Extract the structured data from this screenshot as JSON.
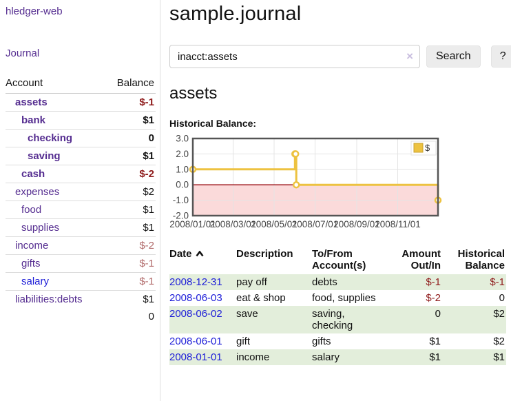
{
  "app": {
    "brand": "hledger-web",
    "nav_journal": "Journal"
  },
  "colors": {
    "link_purple": "#552d90",
    "link_blue": "#1d1dd8",
    "negative_bold": "#8f1c1c",
    "negative_muted": "#b16a6a",
    "row_green": "#e3eedb",
    "series_gold": "#edc240",
    "negative_region_pink": "#fbdada",
    "zero_line_red": "#9d1418",
    "button_gray": "#ececec"
  },
  "sidebar": {
    "header": {
      "account": "Account",
      "balance": "Balance"
    },
    "accounts": [
      {
        "name": "assets",
        "indent": 1,
        "bold": true,
        "unvisited": false,
        "balance": "$-1",
        "negative": true
      },
      {
        "name": "bank",
        "indent": 2,
        "bold": true,
        "unvisited": false,
        "balance": "$1",
        "negative": false
      },
      {
        "name": "checking",
        "indent": 3,
        "bold": true,
        "unvisited": false,
        "balance": "0",
        "negative": false
      },
      {
        "name": "saving",
        "indent": 3,
        "bold": true,
        "unvisited": false,
        "balance": "$1",
        "negative": false
      },
      {
        "name": "cash",
        "indent": 2,
        "bold": true,
        "unvisited": false,
        "balance": "$-2",
        "negative": true
      },
      {
        "name": "expenses",
        "indent": 1,
        "bold": false,
        "unvisited": false,
        "balance": "$2",
        "negative": false
      },
      {
        "name": "food",
        "indent": 2,
        "bold": false,
        "unvisited": false,
        "balance": "$1",
        "negative": false
      },
      {
        "name": "supplies",
        "indent": 2,
        "bold": false,
        "unvisited": false,
        "balance": "$1",
        "negative": false
      },
      {
        "name": "income",
        "indent": 1,
        "bold": false,
        "unvisited": false,
        "balance": "$-2",
        "negative": true
      },
      {
        "name": "gifts",
        "indent": 2,
        "bold": false,
        "unvisited": false,
        "balance": "$-1",
        "negative": true
      },
      {
        "name": "salary",
        "indent": 2,
        "bold": false,
        "unvisited": true,
        "balance": "$-1",
        "negative": true
      },
      {
        "name": "liabilities:debts",
        "indent": 1,
        "bold": false,
        "unvisited": false,
        "balance": "$1",
        "negative": false
      }
    ],
    "total": "0"
  },
  "main": {
    "title": "sample.journal",
    "search": {
      "value": "inacct:assets",
      "clear_label": "×",
      "button_label": "Search",
      "help_label": "?"
    },
    "account_heading": "assets"
  },
  "chart_data": {
    "type": "line",
    "title": "Historical Balance:",
    "steps": true,
    "ylim": [
      -2,
      3
    ],
    "yticks": [
      3.0,
      2.0,
      1.0,
      0.0,
      -1.0,
      -2.0
    ],
    "xticks": [
      "2008/01/01",
      "2008/03/01",
      "2008/05/01",
      "2008/07/01",
      "2008/09/01",
      "2008/11/01"
    ],
    "x_range": [
      "2008-01-01",
      "2008-12-31"
    ],
    "grid": true,
    "legend_position": "top-right",
    "series": [
      {
        "name": "$",
        "color": "#edc240",
        "points": [
          [
            "2008-01-01",
            1
          ],
          [
            "2008-06-01",
            2
          ],
          [
            "2008-06-02",
            2
          ],
          [
            "2008-06-03",
            0
          ],
          [
            "2008-12-31",
            -1
          ]
        ]
      }
    ],
    "negative_fill": "#fbdada",
    "zero_line_color": "#9d1418"
  },
  "register": {
    "headers": {
      "date": "Date",
      "description": "Description",
      "accounts": "To/From Account(s)",
      "amount": "Amount Out/In",
      "balance": "Historical Balance"
    },
    "rows": [
      {
        "date": "2008-12-31",
        "description": "pay off",
        "accounts": [
          "debts"
        ],
        "amount": "$-1",
        "amount_negative": true,
        "balance": "$-1",
        "balance_negative": true
      },
      {
        "date": "2008-06-03",
        "description": "eat & shop",
        "accounts": [
          "food, supplies"
        ],
        "amount": "$-2",
        "amount_negative": true,
        "balance": "0",
        "balance_negative": false
      },
      {
        "date": "2008-06-02",
        "description": "save",
        "accounts": [
          "saving,",
          "checking"
        ],
        "amount": "0",
        "amount_negative": false,
        "balance": "$2",
        "balance_negative": false
      },
      {
        "date": "2008-06-01",
        "description": "gift",
        "accounts": [
          "gifts"
        ],
        "amount": "$1",
        "amount_negative": false,
        "balance": "$2",
        "balance_negative": false
      },
      {
        "date": "2008-01-01",
        "description": "income",
        "accounts": [
          "salary"
        ],
        "amount": "$1",
        "amount_negative": false,
        "balance": "$1",
        "balance_negative": false
      }
    ]
  }
}
